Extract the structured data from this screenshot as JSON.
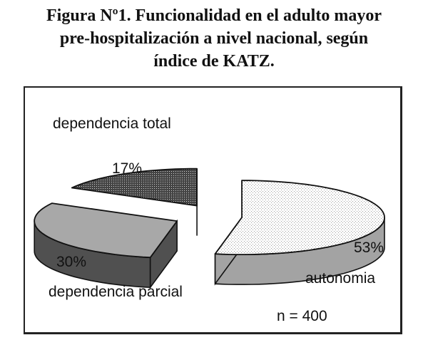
{
  "title_lines": [
    "Figura Nº1. Funcionalidad en el adulto mayor",
    "pre-hospitalización a nivel nacional, según",
    "índice de KATZ."
  ],
  "chart_data": {
    "type": "pie",
    "style": "3d-exploded",
    "slices": [
      {
        "name": "autonomia",
        "value": 53,
        "value_label": "53%",
        "colors": {
          "top": "#f4f4f4",
          "side": "#a3a3a3"
        }
      },
      {
        "name": "dependencia parcial",
        "value": 30,
        "value_label": "30%",
        "colors": {
          "top": "#a8a8a8",
          "side": "#505050"
        }
      },
      {
        "name": "dependencia total",
        "value": 17,
        "value_label": "17%",
        "colors": {
          "top": "#3c3c3c",
          "side": "#2a2a2a"
        }
      }
    ],
    "annotation": "n = 400",
    "legend": "none"
  }
}
